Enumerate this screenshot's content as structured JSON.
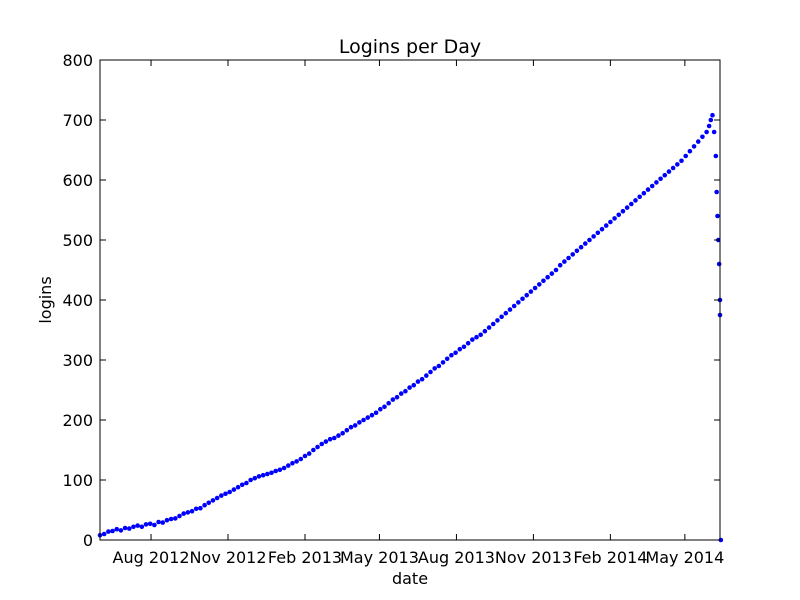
{
  "chart_data": {
    "type": "scatter",
    "title": "Logins per Day",
    "xlabel": "date",
    "ylabel": "logins",
    "xlim": [
      "2012-06-01",
      "2014-06-12"
    ],
    "ylim": [
      0,
      800
    ],
    "y_ticks": [
      0,
      100,
      200,
      300,
      400,
      500,
      600,
      700,
      800
    ],
    "x_ticks": [
      {
        "date": "2012-08-01",
        "label": "Aug 2012"
      },
      {
        "date": "2012-11-01",
        "label": "Nov 2012"
      },
      {
        "date": "2013-02-01",
        "label": "Feb 2013"
      },
      {
        "date": "2013-05-01",
        "label": "May 2013"
      },
      {
        "date": "2013-08-01",
        "label": "Aug 2013"
      },
      {
        "date": "2013-11-01",
        "label": "Nov 2013"
      },
      {
        "date": "2014-02-01",
        "label": "Feb 2014"
      },
      {
        "date": "2014-05-01",
        "label": "May 2014"
      }
    ],
    "grid": false,
    "point_color": "#0000ff",
    "points": [
      [
        "2012-06-01",
        8
      ],
      [
        "2012-06-06",
        10
      ],
      [
        "2012-06-11",
        14
      ],
      [
        "2012-06-16",
        15
      ],
      [
        "2012-06-21",
        18
      ],
      [
        "2012-06-26",
        16
      ],
      [
        "2012-07-01",
        20
      ],
      [
        "2012-07-06",
        19
      ],
      [
        "2012-07-11",
        22
      ],
      [
        "2012-07-16",
        24
      ],
      [
        "2012-07-21",
        22
      ],
      [
        "2012-07-26",
        26
      ],
      [
        "2012-07-31",
        27
      ],
      [
        "2012-08-05",
        25
      ],
      [
        "2012-08-10",
        30
      ],
      [
        "2012-08-15",
        29
      ],
      [
        "2012-08-20",
        33
      ],
      [
        "2012-08-25",
        35
      ],
      [
        "2012-08-30",
        36
      ],
      [
        "2012-09-04",
        40
      ],
      [
        "2012-09-09",
        44
      ],
      [
        "2012-09-14",
        46
      ],
      [
        "2012-09-19",
        48
      ],
      [
        "2012-09-24",
        52
      ],
      [
        "2012-09-29",
        53
      ],
      [
        "2012-10-04",
        58
      ],
      [
        "2012-10-09",
        62
      ],
      [
        "2012-10-14",
        66
      ],
      [
        "2012-10-19",
        70
      ],
      [
        "2012-10-24",
        74
      ],
      [
        "2012-10-29",
        77
      ],
      [
        "2012-11-03",
        80
      ],
      [
        "2012-11-08",
        84
      ],
      [
        "2012-11-13",
        88
      ],
      [
        "2012-11-18",
        92
      ],
      [
        "2012-11-23",
        95
      ],
      [
        "2012-11-28",
        100
      ],
      [
        "2012-12-03",
        103
      ],
      [
        "2012-12-08",
        106
      ],
      [
        "2012-12-13",
        108
      ],
      [
        "2012-12-18",
        110
      ],
      [
        "2012-12-23",
        112
      ],
      [
        "2012-12-28",
        115
      ],
      [
        "2013-01-02",
        117
      ],
      [
        "2013-01-07",
        120
      ],
      [
        "2013-01-12",
        124
      ],
      [
        "2013-01-17",
        128
      ],
      [
        "2013-01-22",
        131
      ],
      [
        "2013-01-27",
        135
      ],
      [
        "2013-02-01",
        140
      ],
      [
        "2013-02-06",
        144
      ],
      [
        "2013-02-11",
        150
      ],
      [
        "2013-02-16",
        155
      ],
      [
        "2013-02-21",
        160
      ],
      [
        "2013-02-26",
        164
      ],
      [
        "2013-03-03",
        168
      ],
      [
        "2013-03-08",
        170
      ],
      [
        "2013-03-13",
        174
      ],
      [
        "2013-03-18",
        178
      ],
      [
        "2013-03-23",
        183
      ],
      [
        "2013-03-28",
        188
      ],
      [
        "2013-04-02",
        191
      ],
      [
        "2013-04-07",
        196
      ],
      [
        "2013-04-12",
        200
      ],
      [
        "2013-04-17",
        204
      ],
      [
        "2013-04-22",
        208
      ],
      [
        "2013-04-27",
        212
      ],
      [
        "2013-05-02",
        218
      ],
      [
        "2013-05-07",
        222
      ],
      [
        "2013-05-12",
        228
      ],
      [
        "2013-05-17",
        234
      ],
      [
        "2013-05-22",
        238
      ],
      [
        "2013-05-27",
        244
      ],
      [
        "2013-06-01",
        248
      ],
      [
        "2013-06-06",
        254
      ],
      [
        "2013-06-11",
        258
      ],
      [
        "2013-06-16",
        264
      ],
      [
        "2013-06-21",
        268
      ],
      [
        "2013-06-26",
        274
      ],
      [
        "2013-07-01",
        280
      ],
      [
        "2013-07-06",
        286
      ],
      [
        "2013-07-11",
        290
      ],
      [
        "2013-07-16",
        296
      ],
      [
        "2013-07-21",
        302
      ],
      [
        "2013-07-26",
        308
      ],
      [
        "2013-07-31",
        312
      ],
      [
        "2013-08-05",
        318
      ],
      [
        "2013-08-10",
        322
      ],
      [
        "2013-08-15",
        328
      ],
      [
        "2013-08-20",
        334
      ],
      [
        "2013-08-25",
        338
      ],
      [
        "2013-08-30",
        342
      ],
      [
        "2013-09-04",
        348
      ],
      [
        "2013-09-09",
        354
      ],
      [
        "2013-09-14",
        360
      ],
      [
        "2013-09-19",
        366
      ],
      [
        "2013-09-24",
        372
      ],
      [
        "2013-09-29",
        378
      ],
      [
        "2013-10-04",
        384
      ],
      [
        "2013-10-09",
        390
      ],
      [
        "2013-10-14",
        396
      ],
      [
        "2013-10-19",
        402
      ],
      [
        "2013-10-24",
        408
      ],
      [
        "2013-10-29",
        414
      ],
      [
        "2013-11-03",
        420
      ],
      [
        "2013-11-08",
        426
      ],
      [
        "2013-11-13",
        432
      ],
      [
        "2013-11-18",
        438
      ],
      [
        "2013-11-23",
        444
      ],
      [
        "2013-11-28",
        450
      ],
      [
        "2013-12-03",
        458
      ],
      [
        "2013-12-08",
        464
      ],
      [
        "2013-12-13",
        470
      ],
      [
        "2013-12-18",
        476
      ],
      [
        "2013-12-23",
        482
      ],
      [
        "2013-12-28",
        488
      ],
      [
        "2014-01-02",
        494
      ],
      [
        "2014-01-07",
        500
      ],
      [
        "2014-01-12",
        506
      ],
      [
        "2014-01-17",
        512
      ],
      [
        "2014-01-22",
        518
      ],
      [
        "2014-01-27",
        524
      ],
      [
        "2014-02-01",
        530
      ],
      [
        "2014-02-06",
        536
      ],
      [
        "2014-02-11",
        542
      ],
      [
        "2014-02-16",
        548
      ],
      [
        "2014-02-21",
        554
      ],
      [
        "2014-02-26",
        560
      ],
      [
        "2014-03-03",
        566
      ],
      [
        "2014-03-08",
        572
      ],
      [
        "2014-03-13",
        578
      ],
      [
        "2014-03-18",
        584
      ],
      [
        "2014-03-23",
        590
      ],
      [
        "2014-03-28",
        596
      ],
      [
        "2014-04-02",
        602
      ],
      [
        "2014-04-07",
        608
      ],
      [
        "2014-04-12",
        614
      ],
      [
        "2014-04-17",
        620
      ],
      [
        "2014-04-22",
        626
      ],
      [
        "2014-04-27",
        632
      ],
      [
        "2014-05-02",
        640
      ],
      [
        "2014-05-07",
        648
      ],
      [
        "2014-05-12",
        656
      ],
      [
        "2014-05-17",
        664
      ],
      [
        "2014-05-22",
        672
      ],
      [
        "2014-05-27",
        680
      ],
      [
        "2014-05-30",
        690
      ],
      [
        "2014-06-01",
        700
      ],
      [
        "2014-06-03",
        708
      ],
      [
        "2014-06-05",
        680
      ],
      [
        "2014-06-07",
        640
      ],
      [
        "2014-06-08",
        580
      ],
      [
        "2014-06-09",
        540
      ],
      [
        "2014-06-10",
        500
      ],
      [
        "2014-06-11",
        460
      ],
      [
        "2014-06-12",
        400
      ],
      [
        "2014-06-12",
        375
      ],
      [
        "2014-06-13",
        0
      ]
    ]
  }
}
